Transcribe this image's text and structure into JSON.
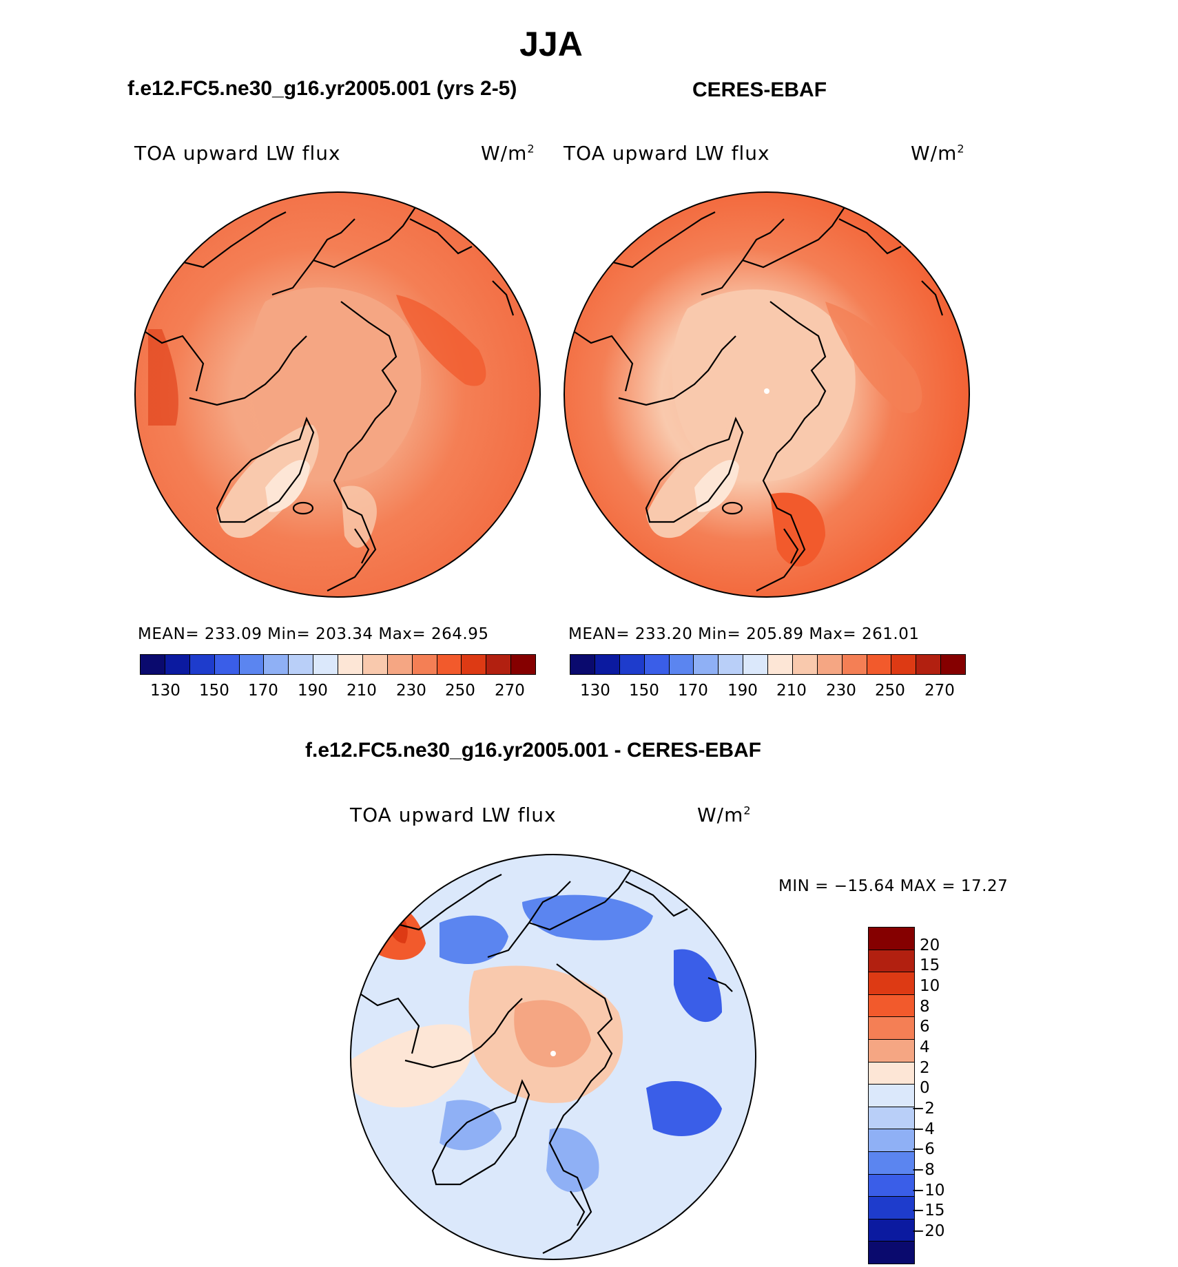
{
  "title": "JJA",
  "panels": [
    {
      "title": "f.e12.FC5.ne30_g16.yr2005.001 (yrs 2-5)",
      "variable": "TOA upward LW flux",
      "units_base": "W/m",
      "units_exp": "2",
      "stats": "MEAN= 233.09    Min= 203.34    Max= 264.95",
      "colorbar_ticks": [
        "130",
        "150",
        "170",
        "190",
        "210",
        "230",
        "250",
        "270"
      ]
    },
    {
      "title": "CERES-EBAF",
      "variable": "TOA upward LW flux",
      "units_base": "W/m",
      "units_exp": "2",
      "stats": "MEAN= 233.20    Min= 205.89    Max= 261.01",
      "colorbar_ticks": [
        "130",
        "150",
        "170",
        "190",
        "210",
        "230",
        "250",
        "270"
      ]
    }
  ],
  "diff": {
    "title": "f.e12.FC5.ne30_g16.yr2005.001 - CERES-EBAF",
    "variable": "TOA upward LW flux",
    "units_base": "W/m",
    "units_exp": "2",
    "stats": "MIN = −15.64 MAX =   17.27",
    "colorbar_labels": [
      "20",
      "15",
      "10",
      "8",
      "6",
      "4",
      "2",
      "0",
      "−2",
      "−4",
      "−6",
      "−8",
      "−10",
      "−15",
      "−20"
    ]
  },
  "colors": {
    "abs_scale": [
      "#0a0a6e",
      "#0b1aa0",
      "#1e3ccc",
      "#3a5ee8",
      "#5b85f0",
      "#8fb0f5",
      "#b9cff8",
      "#dbe8fb",
      "#fde6d6",
      "#f9c9ad",
      "#f5a683",
      "#f47f55",
      "#f25a2c",
      "#dd3a14",
      "#b22010",
      "#850000"
    ],
    "diff_scale": [
      "#850000",
      "#b22010",
      "#dd3a14",
      "#f25a2c",
      "#f47f55",
      "#f5a683",
      "#fde6d6",
      "#dbe8fb",
      "#b9cff8",
      "#8fb0f5",
      "#5b85f0",
      "#3a5ee8",
      "#1e3ccc",
      "#0b1aa0",
      "#0a0a6e"
    ],
    "map_base": "#f26a40"
  }
}
